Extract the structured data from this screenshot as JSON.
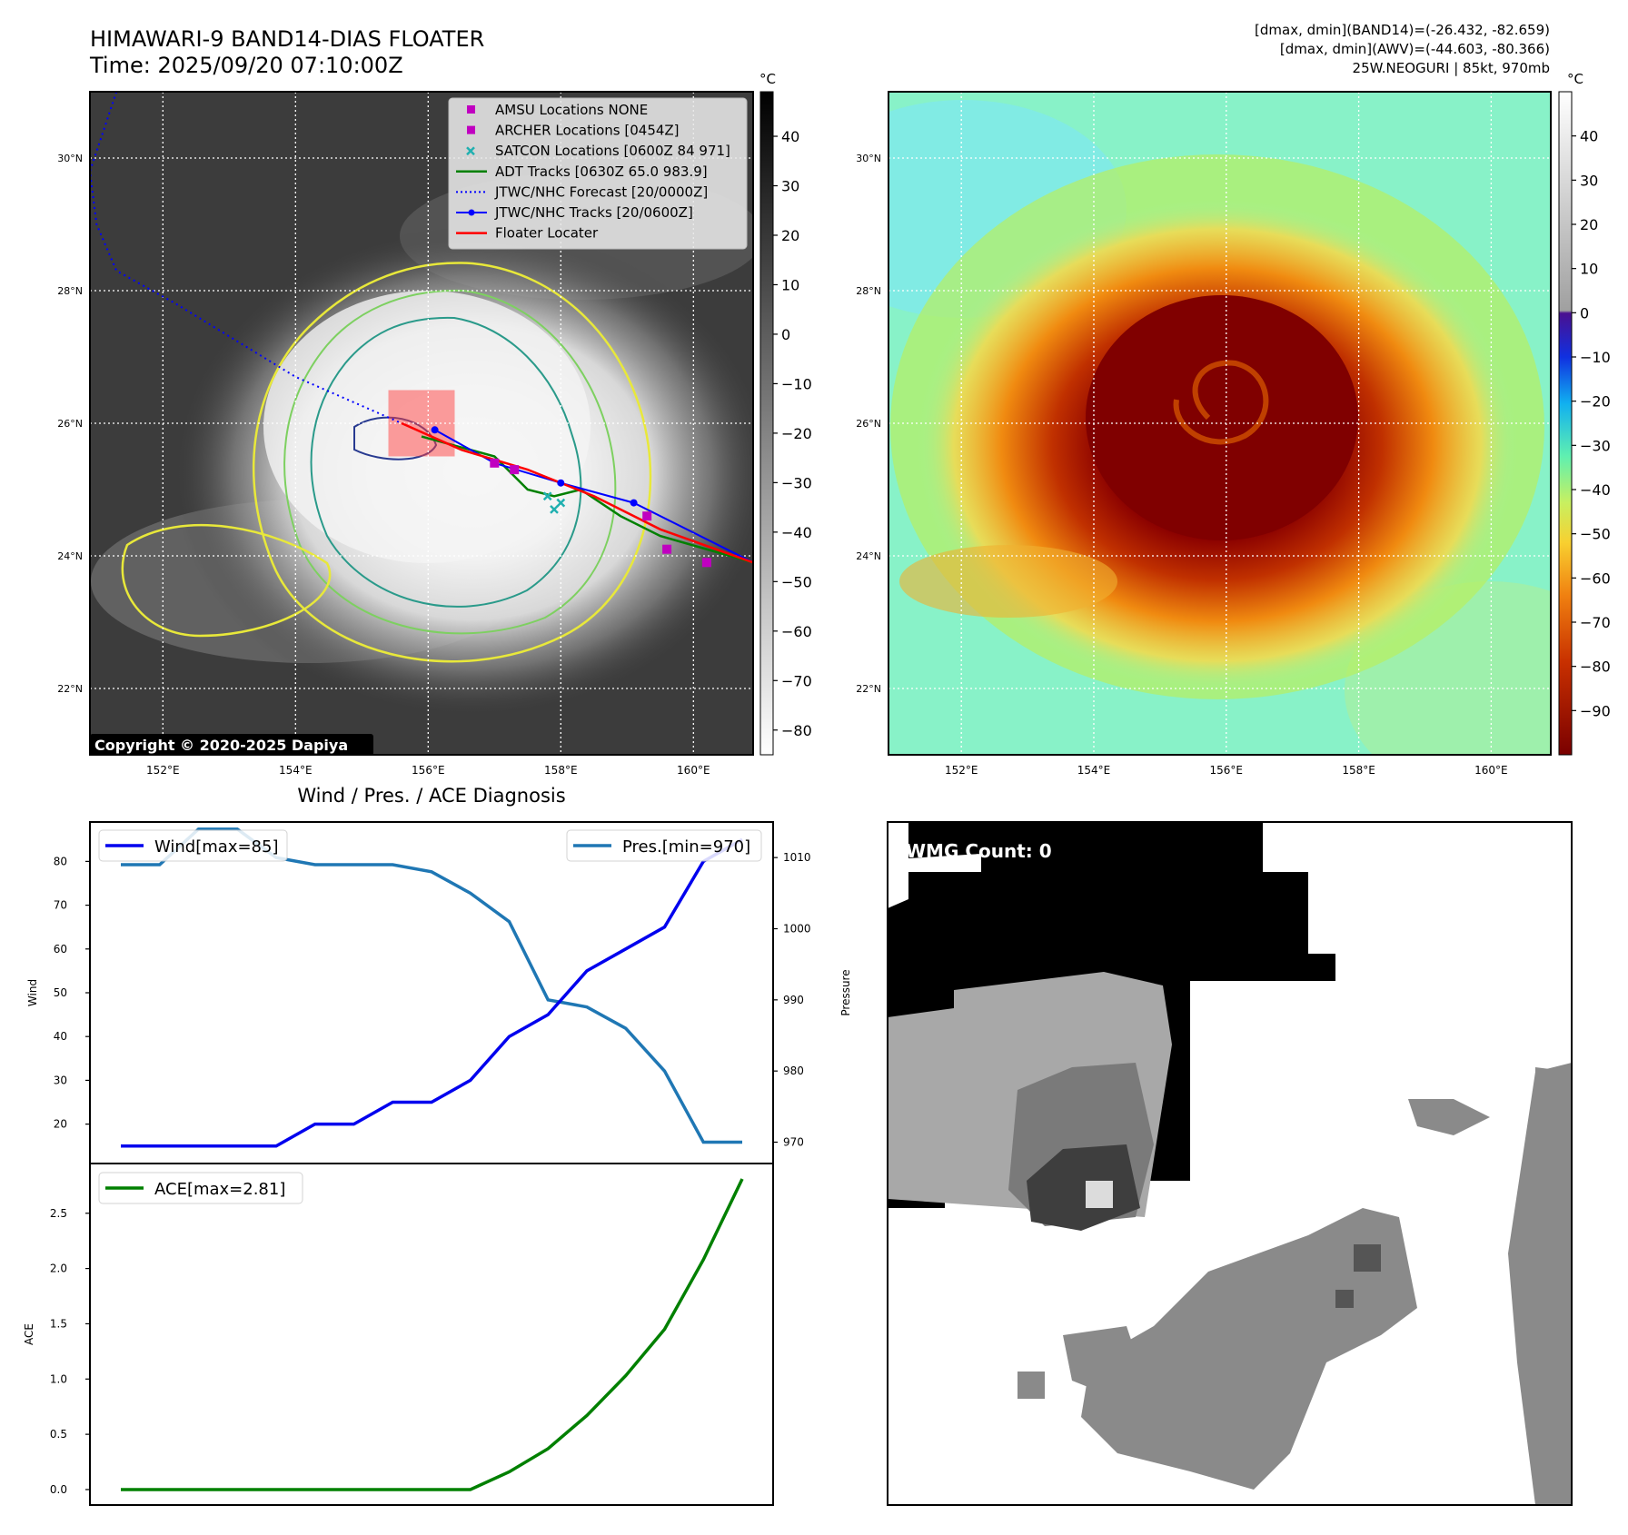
{
  "header": {
    "title_line1": "HIMAWARI-9 BAND14-DIAS FLOATER",
    "title_line2": "Time: 2025/09/20 07:10:00Z",
    "stats_line1": "[dmax, dmin](BAND14)=(-26.432, -82.659)",
    "stats_line2": "[dmax, dmin](AWV)=(-44.603, -80.366)",
    "stats_line3": "25W.NEOGURI | 85kt, 970mb"
  },
  "map_axes": {
    "lat_ticks": [
      "30°N",
      "28°N",
      "26°N",
      "24°N",
      "22°N"
    ],
    "lon_ticks": [
      "152°E",
      "154°E",
      "156°E",
      "158°E",
      "160°E"
    ],
    "lon_range": [
      150.9,
      160.9
    ],
    "lat_range": [
      21.0,
      31.0
    ]
  },
  "ir_panel": {
    "copyright": "Copyright © 2020-2025 Dapiya",
    "colorbar_unit": "°C",
    "colorbar_ticks": [
      "40",
      "30",
      "20",
      "10",
      "0",
      "−10",
      "−20",
      "−30",
      "−40",
      "−50",
      "−60",
      "−70",
      "−80"
    ],
    "colorbar_values": [
      40,
      30,
      20,
      10,
      0,
      -10,
      -20,
      -30,
      -40,
      -50,
      -60,
      -70,
      -80
    ],
    "colorbar_range": [
      -85,
      49
    ],
    "legend": [
      {
        "label": "AMSU Locations NONE",
        "color": "#c000c0",
        "marker": "square"
      },
      {
        "label": "ARCHER Locations [0454Z]",
        "color": "#c000c0",
        "marker": "square"
      },
      {
        "label": "SATCON Locations [0600Z 84 971]",
        "color": "#20b0b0",
        "marker": "x"
      },
      {
        "label": "ADT Tracks [0630Z 65.0 983.9]",
        "color": "#008000",
        "marker": "line"
      },
      {
        "label": "JTWC/NHC Forecast [20/0000Z]",
        "color": "#0000ff",
        "marker": "dotted"
      },
      {
        "label": "JTWC/NHC Tracks [20/0600Z]",
        "color": "#0000ff",
        "marker": "line-dot"
      },
      {
        "label": "Floater Locater",
        "color": "#ff0000",
        "marker": "line"
      }
    ],
    "jtwc_forecast_track": [
      [
        151.3,
        31.0
      ],
      [
        150.9,
        29.8
      ],
      [
        151.0,
        29.0
      ],
      [
        151.3,
        28.3
      ],
      [
        152.2,
        27.8
      ],
      [
        154.0,
        26.7
      ],
      [
        155.6,
        26.0
      ]
    ],
    "jtwc_tracks": [
      [
        156.1,
        25.9
      ],
      [
        157.0,
        25.4
      ],
      [
        158.0,
        25.1
      ],
      [
        159.1,
        24.8
      ],
      [
        160.9,
        23.9
      ]
    ],
    "floater_track": [
      [
        155.6,
        26.0
      ],
      [
        156.5,
        25.6
      ],
      [
        157.5,
        25.3
      ],
      [
        158.5,
        24.9
      ],
      [
        159.5,
        24.4
      ],
      [
        160.9,
        23.9
      ]
    ],
    "adt_track": [
      [
        155.9,
        25.8
      ],
      [
        157.0,
        25.5
      ],
      [
        157.5,
        25.0
      ],
      [
        157.9,
        24.9
      ],
      [
        158.3,
        25.0
      ],
      [
        158.9,
        24.6
      ],
      [
        159.5,
        24.3
      ],
      [
        160.9,
        23.9
      ]
    ],
    "archer_points": [
      [
        157.0,
        25.4
      ],
      [
        157.3,
        25.3
      ],
      [
        159.3,
        24.6
      ],
      [
        159.6,
        24.1
      ],
      [
        160.2,
        23.9
      ]
    ],
    "satcon_points": [
      [
        157.8,
        24.9
      ],
      [
        158.0,
        24.8
      ],
      [
        157.9,
        24.7
      ]
    ],
    "floater_box": [
      155.4,
      25.5,
      156.4,
      26.5
    ]
  },
  "awv_panel": {
    "colorbar_unit": "°C",
    "colorbar_ticks": [
      "40",
      "30",
      "20",
      "10",
      "0",
      "−10",
      "−20",
      "−30",
      "−40",
      "−50",
      "−60",
      "−70",
      "−80",
      "−90"
    ],
    "colorbar_values": [
      40,
      30,
      20,
      10,
      0,
      -10,
      -20,
      -30,
      -40,
      -50,
      -60,
      -70,
      -80,
      -90
    ],
    "colorbar_range": [
      -100,
      50
    ]
  },
  "diagnosis": {
    "title": "Wind / Pres. / ACE Diagnosis",
    "wind_label": "Wind",
    "pressure_label": "Pressure",
    "ace_label": "ACE",
    "wind_legend": "Wind[max=85]",
    "pressure_legend": "Pres.[min=970]",
    "ace_legend": "ACE[max=2.81]",
    "wind_color": "#0000ee",
    "pressure_color": "#1f77b4",
    "ace_color": "#008000"
  },
  "chart_data": [
    {
      "type": "line",
      "x": [
        0,
        1,
        2,
        3,
        4,
        5,
        6,
        7,
        8,
        9,
        10,
        11,
        12,
        13,
        14,
        15,
        16
      ],
      "series": [
        {
          "name": "Wind[max=85]",
          "values": [
            15,
            15,
            15,
            15,
            15,
            20,
            20,
            25,
            25,
            30,
            40,
            45,
            55,
            60,
            65,
            80,
            85
          ]
        },
        {
          "name": "Pres.[min=970]",
          "values": [
            1009,
            1009,
            1014,
            1014,
            1010,
            1009,
            1009,
            1009,
            1008,
            1005,
            1001,
            990,
            989,
            986,
            980,
            970,
            970
          ]
        }
      ],
      "ylabel": "Wind",
      "ylabel2": "Pressure",
      "ylim": [
        11,
        89
      ],
      "ylim2": [
        967,
        1015
      ],
      "yticks": [
        20,
        30,
        40,
        50,
        60,
        70,
        80
      ],
      "yticks2": [
        970,
        980,
        990,
        1000,
        1010
      ],
      "legend": "top"
    },
    {
      "type": "line",
      "x": [
        0,
        1,
        2,
        3,
        4,
        5,
        6,
        7,
        8,
        9,
        10,
        11,
        12,
        13,
        14,
        15,
        16
      ],
      "series": [
        {
          "name": "ACE[max=2.81]",
          "values": [
            0,
            0,
            0,
            0,
            0,
            0,
            0,
            0,
            0,
            0,
            0.16,
            0.37,
            0.67,
            1.03,
            1.45,
            2.08,
            2.81
          ]
        }
      ],
      "ylabel": "ACE",
      "ylim": [
        -0.14,
        2.95
      ],
      "yticks": [
        0.0,
        0.5,
        1.0,
        1.5,
        2.0,
        2.5
      ],
      "ytick_labels": [
        "0.0",
        "0.5",
        "1.0",
        "1.5",
        "2.0",
        "2.5"
      ],
      "legend": "top-left"
    }
  ],
  "wmg_panel": {
    "label": "WMG Count: 0"
  }
}
